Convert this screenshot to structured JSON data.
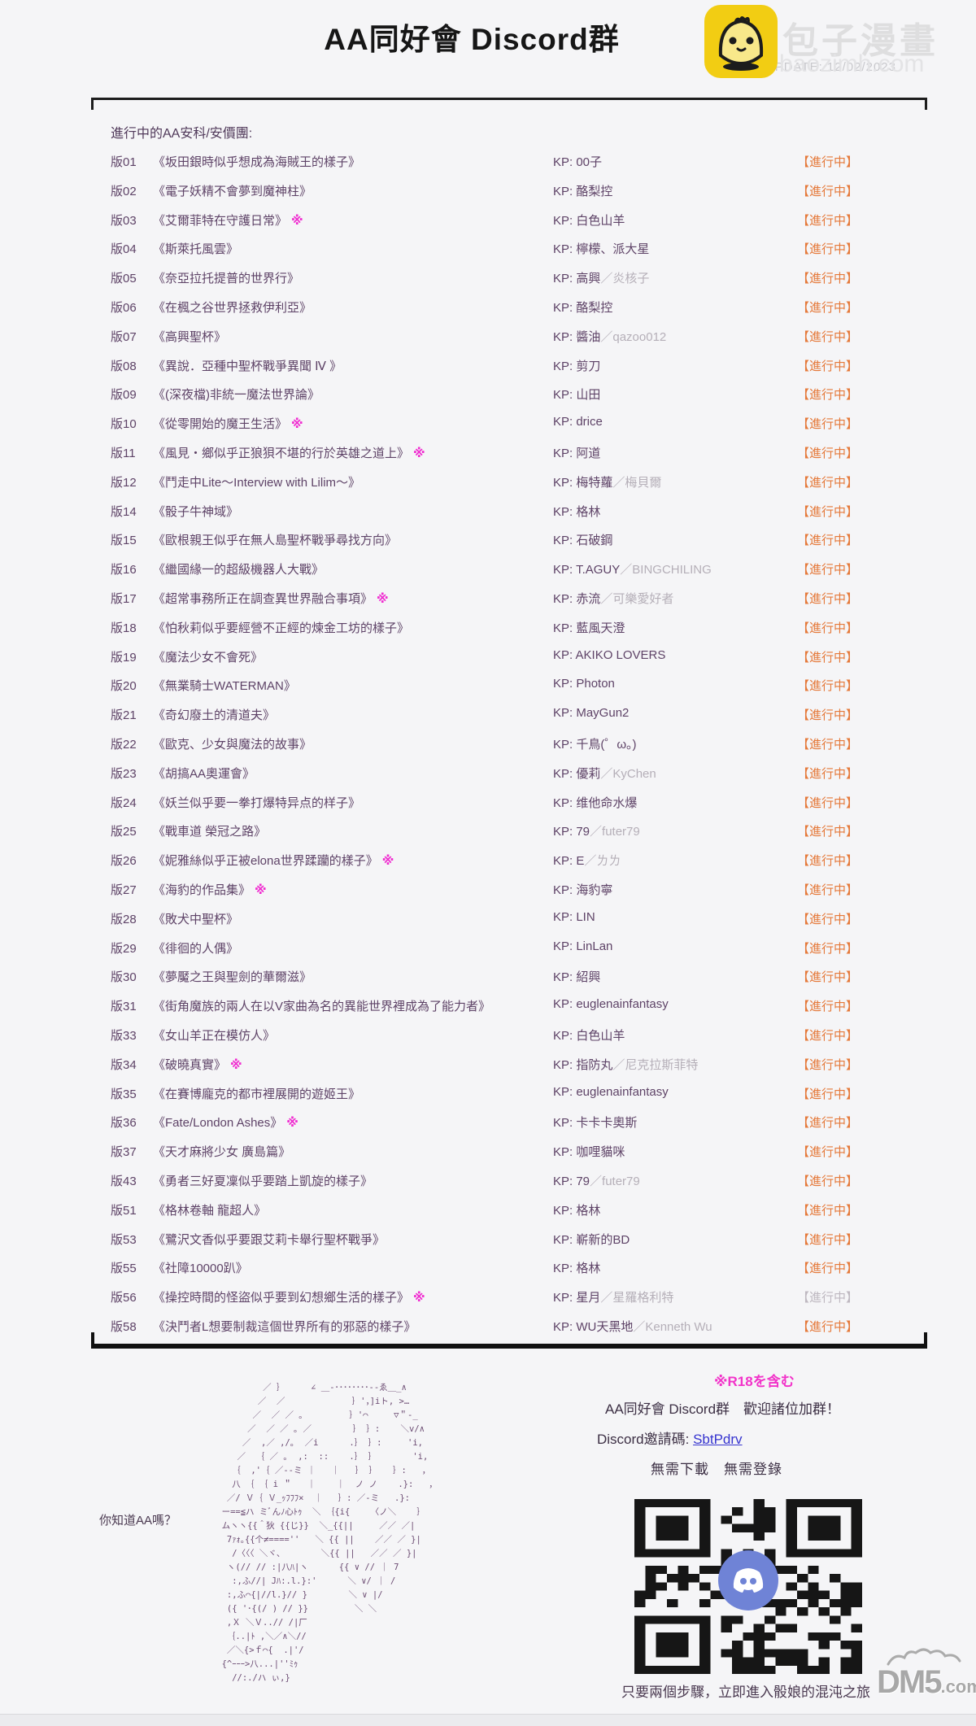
{
  "page": {
    "title": "AA同好會 Discord群",
    "latest_update": "LATEST UPDATE: 12/02/2023",
    "watermark": {
      "brand": "包子漫畫",
      "domain": "baozimh.com",
      "logo_color": "#f2cd13"
    },
    "dm5_watermark": {
      "name": "DM5",
      "suffix": ".com"
    }
  },
  "colors": {
    "status_orange": "#e5793a",
    "status_grey": "#beb8c0",
    "row_purple": "#5e4367",
    "kp_secondary_grey": "#b5afb8",
    "r18_magenta": "#f02cd0",
    "link_blue": "#3634cf",
    "discord_blue": "#6f83d6",
    "logo_yellow": "#f2cd13"
  },
  "list": {
    "heading": "進行中的AA安科/安價團:",
    "kp_prefix": "KP: ",
    "status_label": "【進行中】",
    "r18_mark": "※",
    "rows": [
      {
        "no": "版01",
        "title": "《坂田銀時似乎想成為海賊王的樣子》",
        "kp": "00子",
        "kp2": "",
        "r18": false,
        "status_grey": false
      },
      {
        "no": "版02",
        "title": "《電子妖精不會夢到魔神柱》",
        "kp": "酪梨控",
        "kp2": "",
        "r18": false,
        "status_grey": false
      },
      {
        "no": "版03",
        "title": "《艾爾菲特在守護日常》",
        "kp": "白色山羊",
        "kp2": "",
        "r18": true,
        "status_grey": false
      },
      {
        "no": "版04",
        "title": "《斯萊托風雲》",
        "kp": "檸檬、派大星",
        "kp2": "",
        "r18": false,
        "status_grey": false
      },
      {
        "no": "版05",
        "title": "《奈亞拉托提普的世界行》",
        "kp": "高興",
        "kp2": "／炎核子",
        "r18": false,
        "status_grey": false
      },
      {
        "no": "版06",
        "title": "《在楓之谷世界拯救伊利亞》",
        "kp": "酪梨控",
        "kp2": "",
        "r18": false,
        "status_grey": false
      },
      {
        "no": "版07",
        "title": "《高興聖杯》",
        "kp": "醬油",
        "kp2": "／qazoo012",
        "r18": false,
        "status_grey": false
      },
      {
        "no": "版08",
        "title": "《異說．亞種中聖杯戰爭異聞 Ⅳ 》",
        "kp": "剪刀",
        "kp2": "",
        "r18": false,
        "status_grey": false
      },
      {
        "no": "版09",
        "title": "《(深夜檔)非統一魔法世界論》",
        "kp": "山田",
        "kp2": "",
        "r18": false,
        "status_grey": false
      },
      {
        "no": "版10",
        "title": "《從零開始的魔王生活》",
        "kp": "drice",
        "kp2": "",
        "r18": true,
        "status_grey": false
      },
      {
        "no": "版11",
        "title": "《風見・鄉似乎正狼狽不堪的行於英雄之道上》",
        "kp": "阿道",
        "kp2": "",
        "r18": true,
        "status_grey": false
      },
      {
        "no": "版12",
        "title": "《鬥走中Lite～Interview with Lilim～》",
        "kp": "梅特蘿",
        "kp2": "／梅貝爾",
        "r18": false,
        "status_grey": false
      },
      {
        "no": "版14",
        "title": "《骰子牛神域》",
        "kp": "格林",
        "kp2": "",
        "r18": false,
        "status_grey": false
      },
      {
        "no": "版15",
        "title": "《歐根親王似乎在無人島聖杯戰爭尋找方向》",
        "kp": "石破鋼",
        "kp2": "",
        "r18": false,
        "status_grey": false
      },
      {
        "no": "版16",
        "title": "《繼國緣一的超級機器人大戰》",
        "kp": "T.AGUY",
        "kp2": "／BINGCHILING",
        "r18": false,
        "status_grey": false
      },
      {
        "no": "版17",
        "title": "《超常事務所正在調查異世界融合事項》",
        "kp": "赤流",
        "kp2": "／可樂愛好者",
        "r18": true,
        "status_grey": false
      },
      {
        "no": "版18",
        "title": "《怕秋莉似乎要經營不正經的煉金工坊的樣子》",
        "kp": "藍風天澄",
        "kp2": "",
        "r18": false,
        "status_grey": false
      },
      {
        "no": "版19",
        "title": "《魔法少女不會死》",
        "kp": "AKIKO LOVERS",
        "kp2": "",
        "r18": false,
        "status_grey": false
      },
      {
        "no": "版20",
        "title": "《無業騎士WATERMAN》",
        "kp": "Photon",
        "kp2": "",
        "r18": false,
        "status_grey": false
      },
      {
        "no": "版21",
        "title": "《奇幻廢土的清道夫》",
        "kp": "MayGun2",
        "kp2": "",
        "r18": false,
        "status_grey": false
      },
      {
        "no": "版22",
        "title": "《歐克、少女與魔法的故事》",
        "kp": "千鳥(゜ω。)",
        "kp2": "",
        "r18": false,
        "status_grey": false
      },
      {
        "no": "版23",
        "title": "《胡搞AA奧運會》",
        "kp": "優莉",
        "kp2": "／KyChen",
        "r18": false,
        "status_grey": false
      },
      {
        "no": "版24",
        "title": "《妖兰似乎要一拳打爆特异点的样子》",
        "kp": "维他命水爆",
        "kp2": "",
        "r18": false,
        "status_grey": false
      },
      {
        "no": "版25",
        "title": "《戰車道 榮冠之路》",
        "kp": "79",
        "kp2": "／futer79",
        "r18": false,
        "status_grey": false
      },
      {
        "no": "版26",
        "title": "《妮雅絲似乎正被elona世界蹂躪的樣子》",
        "kp": "E",
        "kp2": "／ㄌㄌ",
        "r18": true,
        "status_grey": false
      },
      {
        "no": "版27",
        "title": "《海豹的作品集》",
        "kp": "海豹寧",
        "kp2": "",
        "r18": true,
        "status_grey": false
      },
      {
        "no": "版28",
        "title": "《敗犬中聖杯》",
        "kp": "LIN",
        "kp2": "",
        "r18": false,
        "status_grey": false
      },
      {
        "no": "版29",
        "title": "《徘徊的人偶》",
        "kp": "LinLan",
        "kp2": "",
        "r18": false,
        "status_grey": false
      },
      {
        "no": "版30",
        "title": "《夢魘之王與聖劍的華爾滋》",
        "kp": "紹興",
        "kp2": "",
        "r18": false,
        "status_grey": false
      },
      {
        "no": "版31",
        "title": "《街角魔族的兩人在以V家曲為名的異能世界裡成為了能力者》",
        "kp": "euglenainfantasy",
        "kp2": "",
        "r18": false,
        "status_grey": false
      },
      {
        "no": "版33",
        "title": "《女山羊正在模仿人》",
        "kp": "白色山羊",
        "kp2": "",
        "r18": false,
        "status_grey": false
      },
      {
        "no": "版34",
        "title": "《破曉真實》",
        "kp": "指防丸",
        "kp2": "／尼克拉斯菲特",
        "r18": true,
        "status_grey": false
      },
      {
        "no": "版35",
        "title": "《在賽博龐克的都市裡展開的遊姬王》",
        "kp": "euglenainfantasy",
        "kp2": "",
        "r18": false,
        "status_grey": false
      },
      {
        "no": "版36",
        "title": "《Fate/London Ashes》",
        "kp": "卡卡卡奧斯",
        "kp2": "",
        "r18": true,
        "status_grey": false
      },
      {
        "no": "版37",
        "title": "《天才麻將少女 廣島篇》",
        "kp": "咖哩貓咪",
        "kp2": "",
        "r18": false,
        "status_grey": false
      },
      {
        "no": "版43",
        "title": "《勇者三好夏凜似乎要踏上凱旋的樣子》",
        "kp": "79",
        "kp2": "／futer79",
        "r18": false,
        "status_grey": false
      },
      {
        "no": "版51",
        "title": "《格林卷軸 龍超人》",
        "kp": "格林",
        "kp2": "",
        "r18": false,
        "status_grey": false
      },
      {
        "no": "版53",
        "title": "《鷺沢文香似乎要跟艾莉卡舉行聖杯戰爭》",
        "kp": "嶄新的BD",
        "kp2": "",
        "r18": false,
        "status_grey": false
      },
      {
        "no": "版55",
        "title": "《社障10000趴》",
        "kp": "格林",
        "kp2": "",
        "r18": false,
        "status_grey": false
      },
      {
        "no": "版56",
        "title": "《操控時間的怪盜似乎要到幻想鄉生活的樣子》",
        "kp": "星月",
        "kp2": "／星羅格利特",
        "r18": true,
        "status_grey": true
      },
      {
        "no": "版58",
        "title": "《決鬥者L想要制裁這個世界所有的邪惡的樣子》",
        "kp": "WU天黑地",
        "kp2": "／Kenneth Wu",
        "r18": false,
        "status_grey": false
      }
    ]
  },
  "footer": {
    "r18_note": "※R18を含む",
    "ascii_caption": "你知道AA嗎？",
    "invite_heading": "AA同好會 Discord群　歡迎諸位加群！",
    "invite_label": "Discord邀請碼: ",
    "invite_code": "SbtPdrv",
    "no_download": "無需下載　無需登錄",
    "qr_caption": "只要兩個步驟，立即進入骰娘的混沌之旅",
    "ascii_art": [
      "                ／ ｝     ∠ ＿-････････--ゑ＿_∧",
      "               ／  ／             ｝'，]iト, >…",
      "              ／  ／ ／ ｡         ｝'⌒     ▽＂-_",
      "             ／  ／ ／ ｡ ／        ｝ ｝:    ＼v/∧",
      "            ／  ,／ ,/｡  ／i      .｝ ｝:     'i,",
      "           ／  ｛ ／ ｡  ,:  ::    .｝ ｝       'i,",
      "          ｛  ,'｛ ／--ミ ｜   ｜   ｝ ｝   ｝:   ，",
      "          八 ｛ ｛ i ＂   ｜    ｜  ノ ノ    .}:   ，",
      "         ／/ Ｖ｛ Ｖ_ｯﾌﾌﾌ×  ｜   ｝: ／-ミ   .}:",
      "        ー==≦ハ ミﾞんﾉ心ﾄｩ  ＼ ｛{i{    〈ノ＼    ｝",
      "        ムヽヽ{{＾狄 {{じ}}  ＼_{{||     ／／ ／|",
      "         7ｧｫ｡{{个≠====''   ＼ {{ ||    ／／ ／ }|",
      "          /〈〈〈 ＼ヾ、       ＼{{ ||   ／／ ／ }|",
      "         ヽ(// // :|八ﾊ|ヽ      {{ ∨ // ｜ 7",
      "          :,ふ//| Jﾊ:.l.}:'      ＼ ∨/ ｜ /",
      "         :,ふ⌒{|//l.}// }        ＼ ∨ |/",
      "         ({ '･{(/ ) // }}         ＼ ＼",
      "         ,Ｘ ＼Ｖ..// /|厂",
      "         ｛..|ﾄ ,＼／∧＼//",
      "         ／＼{>ｆ⌒{  .|'/",
      "        {^ｰｰｰ>八...|''ﾐｩ",
      "          //:./ハ ぃ,}"
    ]
  }
}
